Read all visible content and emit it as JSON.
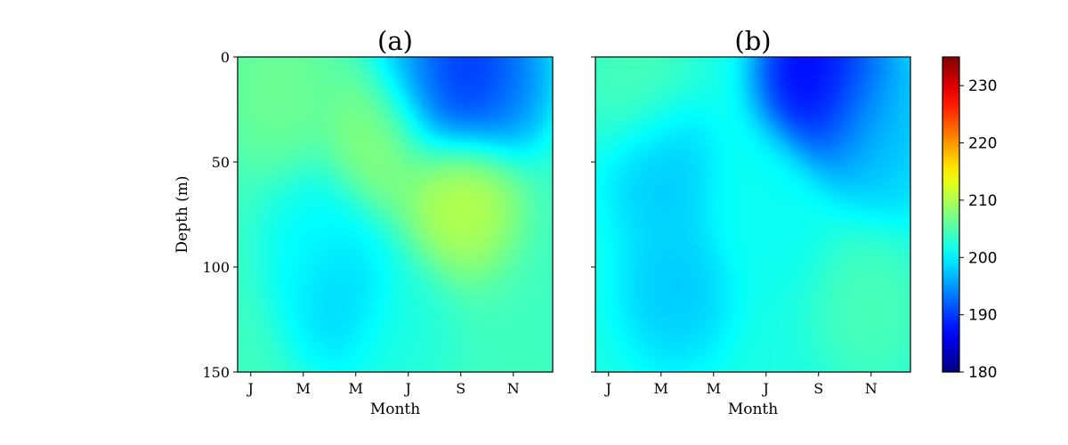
{
  "chart_data": [
    {
      "type": "heatmap",
      "title": "(a)",
      "xlabel": "Month",
      "ylabel": "Depth (m)",
      "x_tick_labels": [
        "J",
        "M",
        "M",
        "J",
        "S",
        "N"
      ],
      "x_tick_months": [
        1,
        3,
        5,
        7,
        9,
        11
      ],
      "xlim_months": [
        0.5,
        12.5
      ],
      "ylim": [
        150,
        0
      ],
      "y_ticks": [
        0,
        50,
        100,
        150
      ],
      "y_tick_labels": [
        "0",
        "50",
        "100",
        "150"
      ],
      "colormap": "jet",
      "features": [
        {
          "month": 8.5,
          "depth": 8,
          "value": 187
        },
        {
          "month": 9.5,
          "depth": 5,
          "value": 186
        },
        {
          "month": 7.5,
          "depth": 5,
          "value": 196
        },
        {
          "month": 10.5,
          "depth": 10,
          "value": 194
        },
        {
          "month": 9.0,
          "depth": 65,
          "value": 212
        },
        {
          "month": 6.0,
          "depth": 35,
          "value": 209
        },
        {
          "month": 2.0,
          "depth": 15,
          "value": 207
        },
        {
          "month": 4.5,
          "depth": 115,
          "value": 197
        },
        {
          "month": 3.5,
          "depth": 90,
          "value": 200
        },
        {
          "month": 6.5,
          "depth": 130,
          "value": 202
        }
      ]
    },
    {
      "type": "heatmap",
      "title": "(b)",
      "xlabel": "Month",
      "ylabel": "",
      "x_tick_labels": [
        "J",
        "M",
        "M",
        "J",
        "S",
        "N"
      ],
      "x_tick_months": [
        1,
        3,
        5,
        7,
        9,
        11
      ],
      "xlim_months": [
        0.5,
        12.5
      ],
      "ylim": [
        150,
        0
      ],
      "y_ticks": [
        0,
        50,
        100,
        150
      ],
      "y_tick_labels": [
        "",
        "",
        "",
        ""
      ],
      "colormap": "jet",
      "features": [
        {
          "month": 8.8,
          "depth": 8,
          "value": 183
        },
        {
          "month": 10.0,
          "depth": 15,
          "value": 189
        },
        {
          "month": 11.0,
          "depth": 30,
          "value": 196
        },
        {
          "month": 12.0,
          "depth": 40,
          "value": 198
        },
        {
          "month": 3.0,
          "depth": 55,
          "value": 197
        },
        {
          "month": 3.5,
          "depth": 110,
          "value": 197
        },
        {
          "month": 11.0,
          "depth": 120,
          "value": 205
        },
        {
          "month": 2.0,
          "depth": 10,
          "value": 205
        },
        {
          "month": 7.0,
          "depth": 70,
          "value": 201
        }
      ]
    }
  ],
  "colorbar": {
    "min": 180,
    "max": 235,
    "ticks": [
      "180",
      "190",
      "200",
      "210",
      "220",
      "230"
    ],
    "tick_values": [
      180,
      190,
      200,
      210,
      220,
      230
    ],
    "colormap": "jet"
  }
}
